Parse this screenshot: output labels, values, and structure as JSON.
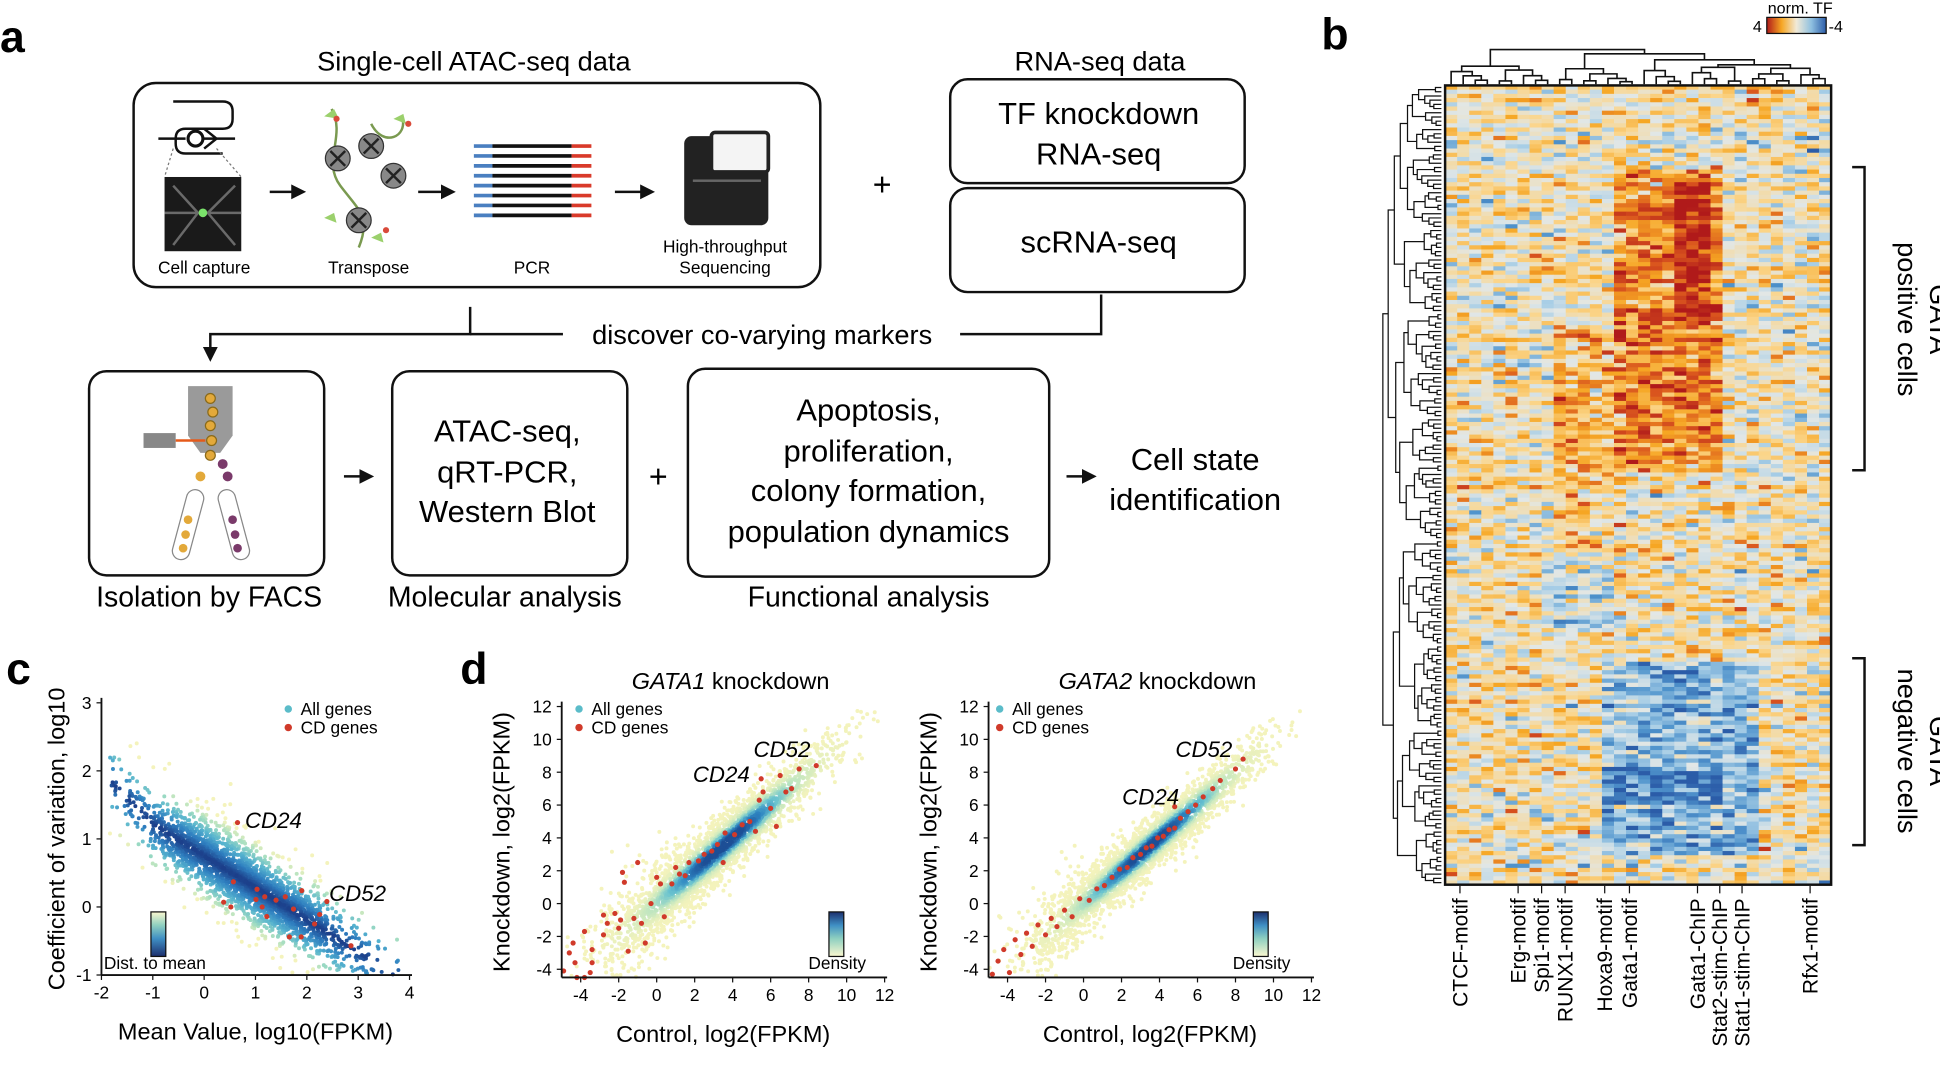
{
  "panel_a": {
    "label": "a",
    "atac_title": "Single-cell ATAC-seq data",
    "steps": [
      "Cell capture",
      "Transpose",
      "PCR",
      "High-throughput",
      "Sequencing"
    ],
    "plus": "+",
    "rna_title": "RNA-seq data",
    "tf_box": [
      "TF knockdown",
      "RNA-seq"
    ],
    "sc_box": "scRNA-seq",
    "discover": "discover co-varying markers",
    "molecular_box": [
      "ATAC-seq,",
      "qRT-PCR,",
      "Western Blot"
    ],
    "functional_box": [
      "Apoptosis,",
      "proliferation,",
      "colony formation,",
      "population dynamics"
    ],
    "outcome": [
      "Cell state",
      "identification"
    ],
    "captions": [
      "Isolation by FACS",
      "Molecular analysis",
      "Functional analysis"
    ],
    "arrow": "→"
  },
  "panel_b": {
    "label": "b",
    "legend_title": "norm. TF",
    "legend_max": "4",
    "legend_min": "-4",
    "palette": [
      "#b01a1a",
      "#d9541e",
      "#f6a623",
      "#fbd58a",
      "#e2e7e6",
      "#a6cde6",
      "#4f93cc",
      "#2b5ca8"
    ],
    "positive_group": [
      "GATA",
      "positive cells"
    ],
    "negative_group": [
      "GATA",
      "negative cells"
    ],
    "column_labels": [
      "CTCF-motif",
      "Erg-motif",
      "Spi1-motif",
      "RUNX1-motif",
      "Hoxa9-motif",
      "Gata1-motif",
      "Gata1-ChIP",
      "Stat2-stim-ChIP",
      "Stat1-stim-ChIP",
      "Rfx1-motif"
    ]
  },
  "colors": {
    "all_genes": "#5bbcc9",
    "cd_genes": "#d03a2a",
    "low_density": "#f3f1b5",
    "high_density": "#1f5f9e"
  },
  "chart_data": [
    {
      "panel": "c",
      "type": "scatter",
      "xlabel": "Mean Value, log10(FPKM)",
      "ylabel": "Coefficient of variation, log10",
      "xlim": [
        -2,
        4
      ],
      "ylim": [
        -1,
        3
      ],
      "xticks": [
        "-2",
        "-1",
        "0",
        "1",
        "2",
        "3",
        "4"
      ],
      "yticks": [
        "-1",
        "0",
        "1",
        "2",
        "3"
      ],
      "legend": [
        "All genes",
        "CD genes"
      ],
      "legend_position": "top-right",
      "colorbar_label": "Dist. to mean",
      "annotations": [
        "CD24",
        "CD52"
      ],
      "cd_genes": [
        [
          0.65,
          1.24
        ],
        [
          2.39,
          0.08
        ],
        [
          2.86,
          -0.57
        ],
        [
          0.57,
          0.37
        ],
        [
          0.38,
          0.07
        ],
        [
          0.52,
          0
        ],
        [
          1.03,
          0.26
        ],
        [
          1.01,
          0.11
        ],
        [
          1.18,
          0.15
        ],
        [
          1.13,
          0
        ],
        [
          1.22,
          -0.14
        ],
        [
          1.4,
          0.1
        ],
        [
          1.58,
          0.15
        ],
        [
          1.74,
          -0.03
        ],
        [
          1.9,
          0.24
        ],
        [
          1.66,
          -0.44
        ],
        [
          1.89,
          -0.44
        ],
        [
          2.15,
          -0.25
        ],
        [
          2.25,
          -0.11
        ]
      ]
    },
    {
      "panel": "d",
      "type": "scatter",
      "title_gene": "GATA1",
      "title_rest": " knockdown",
      "xlabel": "Control, log2(FPKM)",
      "ylabel": "Knockdown, log2(FPKM)",
      "xlim": [
        -5,
        12
      ],
      "ylim": [
        -4.5,
        12
      ],
      "xticks": [
        "-4",
        "-2",
        "0",
        "2",
        "4",
        "6",
        "8",
        "10",
        "12"
      ],
      "yticks": [
        "-4",
        "-2",
        "0",
        "2",
        "4",
        "6",
        "8",
        "10",
        "12"
      ],
      "legend": [
        "All genes",
        "CD genes"
      ],
      "legend_position": "top-left",
      "colorbar_label": "Density",
      "annotations": [
        "CD24",
        "CD52"
      ],
      "cd_genes": [
        [
          -4.9,
          -4.1
        ],
        [
          -4.6,
          -3
        ],
        [
          -4.4,
          -2.4
        ],
        [
          -4.3,
          -3.6
        ],
        [
          -4.2,
          -4.5
        ],
        [
          -3.8,
          -4.5
        ],
        [
          -3.5,
          -4.2
        ],
        [
          -3.4,
          -3.6
        ],
        [
          -3.8,
          -1.7
        ],
        [
          -3.4,
          -2.8
        ],
        [
          -2.8,
          -1.9
        ],
        [
          -2.8,
          -0.7
        ],
        [
          -2.6,
          -1.2
        ],
        [
          -2.2,
          -0.6
        ],
        [
          -2,
          -1.5
        ],
        [
          -1.9,
          -1
        ],
        [
          -1.8,
          1.9
        ],
        [
          -1.7,
          1.3
        ],
        [
          -1.5,
          -2.9
        ],
        [
          -1.2,
          -0.9
        ],
        [
          -1,
          2.5
        ],
        [
          -0.8,
          -1.2
        ],
        [
          -0.6,
          -2.4
        ],
        [
          -0.3,
          0
        ],
        [
          0,
          1.6
        ],
        [
          0.2,
          1.2
        ],
        [
          0.4,
          -0.8
        ],
        [
          0.8,
          1.2
        ],
        [
          1,
          2.2
        ],
        [
          1.2,
          1.8
        ],
        [
          1.5,
          1.7
        ],
        [
          1.7,
          2.5
        ],
        [
          2.2,
          2.6
        ],
        [
          2.5,
          3
        ],
        [
          2.9,
          3.2
        ],
        [
          3.2,
          3.6
        ],
        [
          3.5,
          2.5
        ],
        [
          3.6,
          4.3
        ],
        [
          4.1,
          4.2
        ],
        [
          4.5,
          4.8
        ],
        [
          4.9,
          5
        ],
        [
          5.2,
          4.4
        ],
        [
          5.4,
          6.3
        ],
        [
          5.5,
          7.6
        ],
        [
          5.6,
          6.8
        ],
        [
          6,
          5.8
        ],
        [
          6.3,
          4.7
        ],
        [
          6.5,
          7.8
        ],
        [
          6.8,
          6.8
        ],
        [
          7.1,
          7
        ],
        [
          7.5,
          8.2
        ],
        [
          8.4,
          8.4
        ]
      ]
    },
    {
      "panel": "d",
      "type": "scatter",
      "title_gene": "GATA2",
      "title_rest": " knockdown",
      "xlabel": "Control, log2(FPKM)",
      "ylabel": "Knockdown, log2(FPKM)",
      "xlim": [
        -5,
        12
      ],
      "ylim": [
        -4.5,
        12
      ],
      "xticks": [
        "-4",
        "-2",
        "0",
        "2",
        "4",
        "6",
        "8",
        "10",
        "12"
      ],
      "yticks": [
        "-4",
        "-2",
        "0",
        "2",
        "4",
        "6",
        "8",
        "10",
        "12"
      ],
      "legend": [
        "All genes",
        "CD genes"
      ],
      "legend_position": "top-left",
      "colorbar_label": "Density",
      "annotations": [
        "CD24",
        "CD52"
      ],
      "cd_genes": [
        [
          -4.8,
          -4.3
        ],
        [
          -4.5,
          -3.5
        ],
        [
          -4.2,
          -2.8
        ],
        [
          -3.9,
          -4.2
        ],
        [
          -3.6,
          -2.2
        ],
        [
          -3.3,
          -3.1
        ],
        [
          -3,
          -1.8
        ],
        [
          -2.7,
          -2.6
        ],
        [
          -2.4,
          -1.3
        ],
        [
          -2,
          -1.9
        ],
        [
          -1.7,
          -0.9
        ],
        [
          -1.4,
          -1.4
        ],
        [
          -1,
          -0.4
        ],
        [
          -0.6,
          -0.8
        ],
        [
          -0.2,
          0.3
        ],
        [
          0.3,
          0.2
        ],
        [
          0.7,
          0.9
        ],
        [
          1.1,
          1.1
        ],
        [
          1.5,
          1.6
        ],
        [
          1.9,
          2.1
        ],
        [
          2.3,
          2.2
        ],
        [
          2.6,
          2.8
        ],
        [
          3,
          3
        ],
        [
          3.3,
          3.4
        ],
        [
          3.6,
          3.5
        ],
        [
          3.9,
          4
        ],
        [
          4.2,
          4.1
        ],
        [
          4.5,
          4.5
        ],
        [
          4.8,
          4.6
        ],
        [
          5.1,
          5.2
        ],
        [
          5.5,
          5.6
        ],
        [
          5.9,
          6
        ],
        [
          6.3,
          6.5
        ],
        [
          6.8,
          7
        ],
        [
          7.2,
          7.5
        ],
        [
          8,
          8.2
        ],
        [
          4.8,
          5.9
        ],
        [
          8.4,
          8.8
        ]
      ]
    }
  ]
}
